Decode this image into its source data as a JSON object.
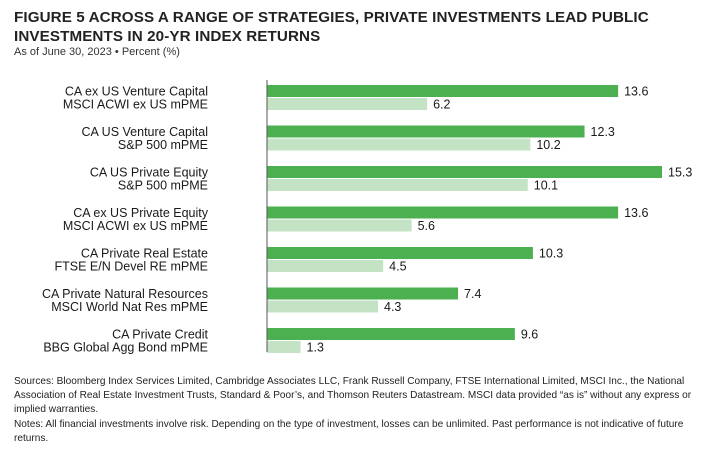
{
  "title": "FIGURE 5   ACROSS A RANGE OF STRATEGIES, PRIVATE INVESTMENTS LEAD PUBLIC INVESTMENTS IN 20-YR INDEX RETURNS",
  "subtitle": "As of June 30, 2023 • Percent (%)",
  "colors": {
    "private": "#4caf50",
    "public": "#c3e3c4",
    "axis": "#555555"
  },
  "chart_data": {
    "type": "bar",
    "orientation": "horizontal",
    "title": "ACROSS A RANGE OF STRATEGIES, PRIVATE INVESTMENTS LEAD PUBLIC INVESTMENTS IN 20-YR INDEX RETURNS",
    "xlim": [
      0,
      15.3
    ],
    "grid": false,
    "legend": "none",
    "groups": [
      {
        "private_label": "CA ex US Venture Capital",
        "private": 13.6,
        "public_label": "MSCI ACWI ex US mPME",
        "public": 6.2
      },
      {
        "private_label": "CA US Venture Capital",
        "private": 12.3,
        "public_label": "S&P 500 mPME",
        "public": 10.2
      },
      {
        "private_label": "CA US Private Equity",
        "private": 15.3,
        "public_label": "S&P 500 mPME",
        "public": 10.1
      },
      {
        "private_label": "CA ex US Private Equity",
        "private": 13.6,
        "public_label": "MSCI ACWI ex US mPME",
        "public": 5.6
      },
      {
        "private_label": "CA Private Real Estate",
        "private": 10.3,
        "public_label": "FTSE E/N Devel RE mPME",
        "public": 4.5
      },
      {
        "private_label": "CA Private Natural Resources",
        "private": 7.4,
        "public_label": "MSCI World Nat Res mPME",
        "public": 4.3
      },
      {
        "private_label": "CA Private Credit",
        "private": 9.6,
        "public_label": "BBG Global Agg Bond mPME",
        "public": 1.3
      }
    ]
  },
  "notes": {
    "sources": "Sources: Bloomberg Index Services Limited, Cambridge Associates LLC, Frank Russell Company, FTSE International Limited, MSCI Inc., the National Association of Real Estate Investment Trusts, Standard & Poor’s, and Thomson Reuters Datastream. MSCI data provided “as is” without any express or implied warranties.",
    "disclaimer": "Notes: All financial investments involve risk. Depending on the type of investment, losses can be unlimited. Past performance is not indicative of future returns."
  }
}
